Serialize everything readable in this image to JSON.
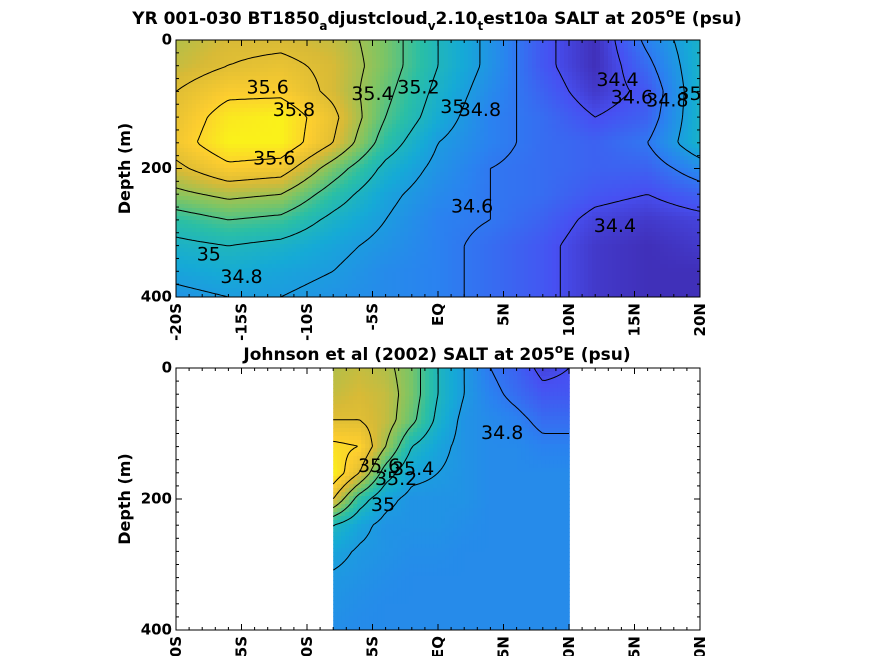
{
  "figure": {
    "panels": [
      {
        "title_parts": [
          "YR 001-030 BT1850",
          "a",
          "djustcloud",
          "v",
          "2.10",
          "t",
          "est10a SALT at 205",
          "o",
          "E (psu)"
        ],
        "title_styles": [
          "n",
          "sub",
          "n",
          "sub",
          "n",
          "sub",
          "n",
          "sup",
          "n"
        ],
        "ylabel": "Depth (m)"
      },
      {
        "title_parts": [
          "Johnson et al (2002) SALT at 205",
          "o",
          "E (psu)"
        ],
        "title_styles": [
          "n",
          "sup",
          "n"
        ],
        "ylabel": "Depth (m)"
      }
    ]
  },
  "chart_data": [
    {
      "type": "heatmap",
      "title": "YR 001-030 BT1850_adjustcloud_v2.10_test10a SALT at 205°E (psu)",
      "xlabel": "",
      "ylabel": "Depth (m)",
      "xlim": [
        -20,
        20
      ],
      "ylim": [
        400,
        0
      ],
      "x_ticks": [
        -20,
        -15,
        -10,
        -5,
        0,
        5,
        10,
        15,
        20
      ],
      "x_tick_labels": [
        "-20S",
        "-15S",
        "-10S",
        "-5S",
        "EQ",
        "5N",
        "10N",
        "15N",
        "20N"
      ],
      "y_ticks": [
        0,
        200,
        400
      ],
      "y_tick_labels": [
        "0",
        "200",
        "400"
      ],
      "colormap_range": [
        34.2,
        36.0
      ],
      "x": [
        -20,
        -16,
        -12,
        -8,
        -4,
        0,
        4,
        8,
        12,
        16,
        20
      ],
      "depth": [
        0,
        40,
        80,
        120,
        160,
        200,
        240,
        280,
        320,
        360,
        400
      ],
      "salinity": [
        [
          35.45,
          35.55,
          35.55,
          35.5,
          35.3,
          35.0,
          34.75,
          34.45,
          34.25,
          34.65,
          34.95
        ],
        [
          35.5,
          35.6,
          35.65,
          35.55,
          35.3,
          35.0,
          34.75,
          34.45,
          34.25,
          34.55,
          34.95
        ],
        [
          35.6,
          35.75,
          35.75,
          35.55,
          35.25,
          34.95,
          34.7,
          34.5,
          34.3,
          34.45,
          34.95
        ],
        [
          35.65,
          35.9,
          35.95,
          35.65,
          35.2,
          34.9,
          34.65,
          34.55,
          34.4,
          34.5,
          34.95
        ],
        [
          35.7,
          35.95,
          35.95,
          35.6,
          35.1,
          34.8,
          34.65,
          34.55,
          34.5,
          34.6,
          34.95
        ],
        [
          35.55,
          35.75,
          35.7,
          35.3,
          34.95,
          34.75,
          34.6,
          34.55,
          34.5,
          34.5,
          34.7
        ],
        [
          35.35,
          35.45,
          35.4,
          35.1,
          34.85,
          34.7,
          34.6,
          34.55,
          34.45,
          34.4,
          34.5
        ],
        [
          35.1,
          35.2,
          35.15,
          34.95,
          34.8,
          34.65,
          34.6,
          34.5,
          34.35,
          34.3,
          34.35
        ],
        [
          34.95,
          35.0,
          34.95,
          34.85,
          34.75,
          34.65,
          34.55,
          34.45,
          34.3,
          34.25,
          34.3
        ],
        [
          34.85,
          34.9,
          34.85,
          34.8,
          34.7,
          34.65,
          34.55,
          34.45,
          34.3,
          34.25,
          34.25
        ],
        [
          34.75,
          34.8,
          34.8,
          34.75,
          34.7,
          34.65,
          34.55,
          34.45,
          34.3,
          34.25,
          34.25
        ]
      ],
      "contour_labels": [
        {
          "text": "35.6",
          "x": -13,
          "depth": 75
        },
        {
          "text": "35.8",
          "x": -11,
          "depth": 110
        },
        {
          "text": "35.6",
          "x": -12.5,
          "depth": 185
        },
        {
          "text": "35.4",
          "x": -5,
          "depth": 85
        },
        {
          "text": "35.2",
          "x": -1.5,
          "depth": 75
        },
        {
          "text": "35",
          "x": 1.1,
          "depth": 105
        },
        {
          "text": "34.8",
          "x": 3.2,
          "depth": 110
        },
        {
          "text": "34.6",
          "x": 2.6,
          "depth": 260
        },
        {
          "text": "34.4",
          "x": 13.7,
          "depth": 63
        },
        {
          "text": "34.6",
          "x": 14.8,
          "depth": 90
        },
        {
          "text": "34.8",
          "x": 17.5,
          "depth": 95
        },
        {
          "text": "35",
          "x": 19.2,
          "depth": 85
        },
        {
          "text": "34.4",
          "x": 13.5,
          "depth": 290
        },
        {
          "text": "35",
          "x": -17.5,
          "depth": 335
        },
        {
          "text": "34.8",
          "x": -15,
          "depth": 370
        }
      ]
    },
    {
      "type": "heatmap",
      "title": "Johnson et al (2002) SALT at 205°E (psu)",
      "xlabel": "",
      "ylabel": "Depth (m)",
      "xlim": [
        -20,
        20
      ],
      "ylim": [
        400,
        0
      ],
      "x_ticks": [
        -20,
        -15,
        -10,
        -5,
        0,
        5,
        10,
        15,
        20
      ],
      "x_tick_labels": [
        "-20S",
        "-15S",
        "-10S",
        "-5S",
        "EQ",
        "5N",
        "10N",
        "15N",
        "20N"
      ],
      "y_ticks": [
        0,
        200,
        400
      ],
      "y_tick_labels": [
        "0",
        "200",
        "400"
      ],
      "colormap_range": [
        34.2,
        36.0
      ],
      "data_extent_x": [
        -8,
        10
      ],
      "x": [
        -8,
        -6,
        -4,
        -2,
        0,
        2,
        4,
        6,
        8,
        10
      ],
      "depth": [
        0,
        40,
        80,
        120,
        160,
        200,
        240,
        280,
        320,
        360,
        400
      ],
      "salinity": [
        [
          35.45,
          35.5,
          35.45,
          35.3,
          35.0,
          34.8,
          34.6,
          34.5,
          34.35,
          34.4
        ],
        [
          35.5,
          35.55,
          35.5,
          35.3,
          35.0,
          34.8,
          34.65,
          34.55,
          34.45,
          34.45
        ],
        [
          35.6,
          35.6,
          35.5,
          35.25,
          34.95,
          34.75,
          34.7,
          34.65,
          34.55,
          34.55
        ],
        [
          35.85,
          35.8,
          35.4,
          35.0,
          34.85,
          34.75,
          34.7,
          34.7,
          34.65,
          34.65
        ],
        [
          35.95,
          35.6,
          35.1,
          34.85,
          34.8,
          34.75,
          34.7,
          34.7,
          34.7,
          34.7
        ],
        [
          35.6,
          35.1,
          34.85,
          34.75,
          34.75,
          34.75,
          34.7,
          34.7,
          34.7,
          34.7
        ],
        [
          35.0,
          34.85,
          34.75,
          34.75,
          34.75,
          34.72,
          34.7,
          34.7,
          34.7,
          34.7
        ],
        [
          34.85,
          34.78,
          34.75,
          34.72,
          34.72,
          34.7,
          34.7,
          34.7,
          34.7,
          34.7
        ],
        [
          34.78,
          34.75,
          34.72,
          34.7,
          34.7,
          34.7,
          34.7,
          34.7,
          34.7,
          34.7
        ],
        [
          34.75,
          34.72,
          34.7,
          34.7,
          34.7,
          34.7,
          34.7,
          34.7,
          34.7,
          34.7
        ],
        [
          34.72,
          34.7,
          34.7,
          34.7,
          34.7,
          34.7,
          34.7,
          34.7,
          34.7,
          34.7
        ]
      ],
      "contour_labels": [
        {
          "text": "34.8",
          "x": 4.9,
          "depth": 100
        },
        {
          "text": "35.4",
          "x": -1.9,
          "depth": 155
        },
        {
          "text": "35.6",
          "x": -4.5,
          "depth": 150
        },
        {
          "text": "35.2",
          "x": -3.2,
          "depth": 170
        },
        {
          "text": "35",
          "x": -4.2,
          "depth": 210
        }
      ]
    }
  ]
}
